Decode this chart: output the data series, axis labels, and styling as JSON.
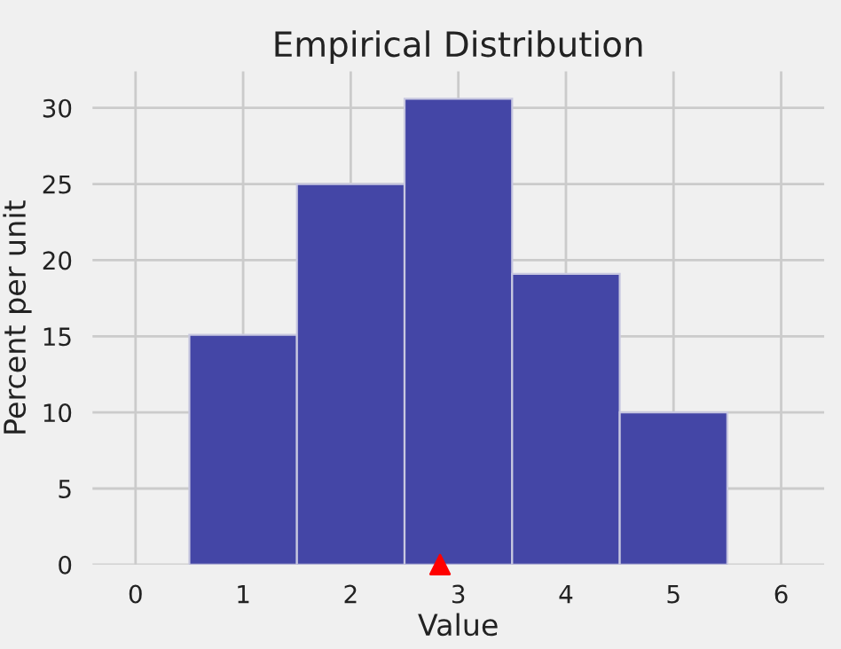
{
  "chart_data": {
    "type": "histogram",
    "title": "Empirical Distribution",
    "xlabel": "Value",
    "ylabel": "Percent per unit",
    "bins": [
      0.5,
      1.5,
      2.5,
      3.5,
      4.5,
      5.5
    ],
    "values": [
      15.1,
      25,
      30.6,
      19.1,
      10
    ],
    "color": "#4446a6",
    "series": [
      {
        "type": "scatter",
        "x": [
          2.83
        ],
        "values": [
          0
        ],
        "color": "#ff0000",
        "marker": "triangle"
      }
    ],
    "xlim": [
      -0.4,
      6.4
    ],
    "ylim": [
      0,
      32.4
    ],
    "xticks": [
      0,
      1,
      2,
      3,
      4,
      5,
      6
    ],
    "yticks": [
      0,
      5,
      10,
      15,
      20,
      25,
      30
    ],
    "grid": true
  }
}
